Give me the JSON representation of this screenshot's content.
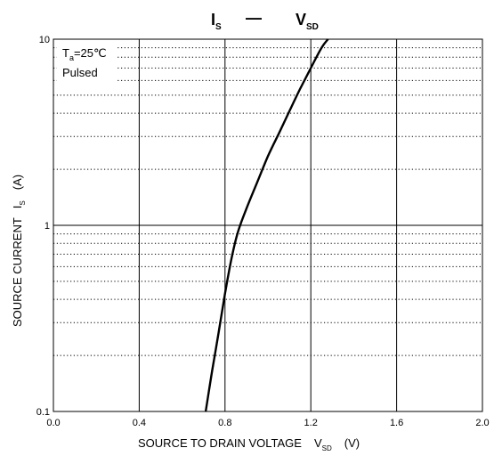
{
  "chart_data": {
    "type": "line",
    "title": {
      "left_symbol": "I",
      "left_sub": "S",
      "dash": "—",
      "right_symbol": "V",
      "right_sub": "SD"
    },
    "xlabel": {
      "text": "SOURCE TO DRAIN VOLTAGE",
      "symbol": "V",
      "sub": "SD",
      "unit": "(V)"
    },
    "ylabel": {
      "text": "SOURCE CURRENT",
      "symbol": "I",
      "sub": "S",
      "unit": "(A)"
    },
    "xlim": [
      0,
      2.0
    ],
    "ylim": [
      0.1,
      10
    ],
    "yscale": "log",
    "x_ticks": [
      0,
      0.4,
      0.8,
      1.2,
      1.6,
      2.0
    ],
    "x_tick_labels": [
      "0.0",
      "0.4",
      "0.8",
      "1.2",
      "1.6",
      "2.0"
    ],
    "y_ticks": [
      0.1,
      1,
      10
    ],
    "y_tick_labels": [
      "0.1",
      "1",
      "10"
    ],
    "grid": true,
    "annotation": {
      "line1_prefix": "T",
      "line1_sub": "a",
      "line1_suffix": "=25℃",
      "line2": "Pulsed"
    },
    "series": [
      {
        "x": [
          0.71,
          0.74,
          0.77,
          0.8,
          0.83,
          0.86,
          0.9,
          0.95,
          1.0,
          1.05,
          1.1,
          1.15,
          1.2,
          1.25,
          1.28
        ],
        "y": [
          0.1,
          0.165,
          0.265,
          0.43,
          0.66,
          0.92,
          1.23,
          1.7,
          2.35,
          3.1,
          4.1,
          5.4,
          7.0,
          9.0,
          10.0
        ]
      }
    ]
  }
}
